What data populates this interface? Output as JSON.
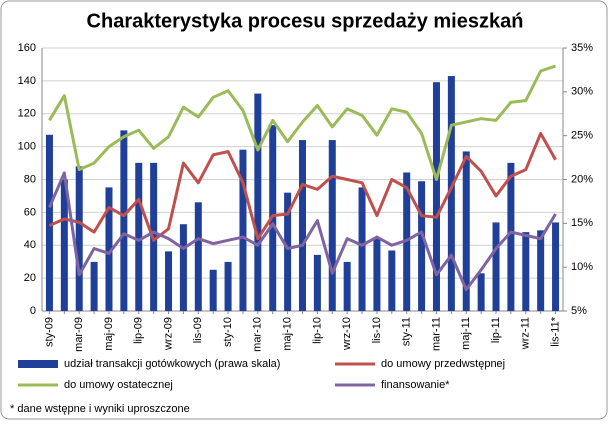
{
  "chart_data": {
    "type": "bar-line",
    "title": "Charakterystyka procesu sprzedaży mieszkań",
    "footnote": "* dane wstępne i wyniki uproszczone",
    "categories": [
      "sty-09",
      null,
      "mar-09",
      null,
      "maj-09",
      null,
      "lip-09",
      null,
      "wrz-09",
      null,
      "lis-09",
      null,
      "sty-10",
      null,
      "mar-10",
      null,
      "maj-10",
      null,
      "lip-10",
      null,
      "wrz-10",
      null,
      "lis-10",
      null,
      "sty-11",
      null,
      "mar-11",
      null,
      "maj-11",
      null,
      "lip-11",
      null,
      "wrz-11",
      null,
      "lis-11*"
    ],
    "ylim": [
      0,
      160
    ],
    "yticks": [
      0,
      20,
      40,
      60,
      80,
      100,
      120,
      140,
      160
    ],
    "y2lim": [
      5,
      35
    ],
    "y2ticks": [
      {
        "value": 5,
        "label": "5%"
      },
      {
        "value": 10,
        "label": "10%"
      },
      {
        "value": 15,
        "label": "15%"
      },
      {
        "value": 20,
        "label": "20%"
      },
      {
        "value": 25,
        "label": "25%"
      },
      {
        "value": 30,
        "label": "30%"
      },
      {
        "value": 35,
        "label": "35%"
      }
    ],
    "grid": true,
    "series": [
      {
        "name": "udział transakcji gotówkowych (prawa skala)",
        "kind": "bar",
        "axis": "y2",
        "color": "#1f3f99",
        "values": [
          25.1,
          20,
          21.5,
          10.6,
          19.1,
          25.6,
          21.9,
          21.9,
          11.8,
          14.9,
          17.4,
          9.7,
          10.6,
          23.4,
          29.8,
          26.2,
          18.5,
          24.5,
          11.4,
          24.5,
          10.6,
          19.1,
          13.4,
          11.9,
          20.8,
          19.8,
          31.1,
          31.8,
          23.2,
          9.3,
          15.1,
          21.9,
          14,
          14.2,
          15.1
        ]
      },
      {
        "name": "do umowy przedwstępnej",
        "kind": "line",
        "color": "#c0504d",
        "values": [
          52,
          56,
          54,
          48,
          63,
          58,
          68,
          43,
          50,
          90,
          78,
          95,
          97,
          78,
          44,
          58,
          59,
          77,
          74,
          82,
          80,
          78,
          58,
          80,
          75,
          58,
          57,
          75,
          94,
          85,
          70,
          82,
          86,
          108,
          92
        ]
      },
      {
        "name": "do umowy ostatecznej",
        "kind": "line",
        "color": "#9bbb59",
        "values": [
          116,
          131,
          86,
          90,
          100,
          106,
          110,
          99,
          106,
          124,
          118,
          130,
          134,
          122,
          98,
          116,
          103,
          115,
          125,
          112,
          123,
          119,
          107,
          123,
          121,
          108,
          80,
          113,
          115,
          117,
          116,
          127,
          128,
          146,
          149
        ]
      },
      {
        "name": "finansowanie*",
        "kind": "line",
        "color": "#8064a2",
        "values": [
          63,
          84,
          22,
          38,
          35,
          47,
          43,
          48,
          44,
          38,
          44,
          41,
          43,
          45,
          40,
          53,
          38,
          40,
          55,
          23,
          44,
          40,
          45,
          40,
          43,
          48,
          22,
          34,
          13,
          25,
          38,
          48,
          46,
          44,
          59
        ]
      }
    ]
  }
}
